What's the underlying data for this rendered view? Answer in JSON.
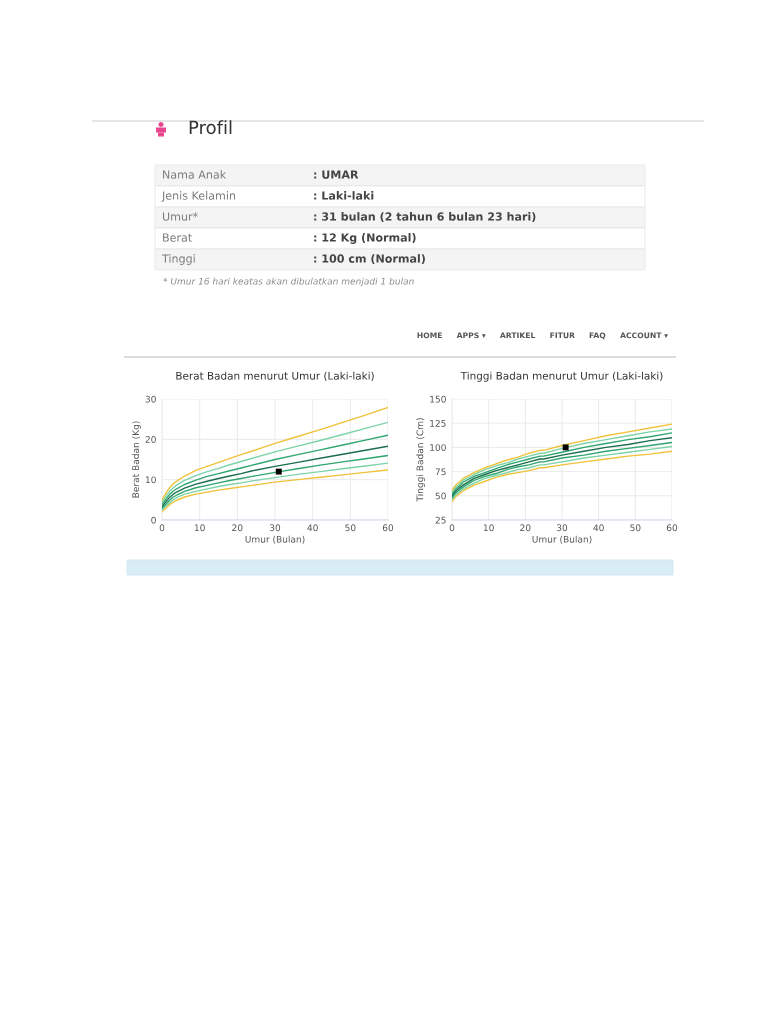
{
  "chart_data": [
    {
      "type": "other",
      "title": "Profil",
      "categories": [
        "Nama Anak",
        "Jenis Kelamin",
        "Umur*",
        "Berat",
        "Tinggi"
      ],
      "annotations": [
        ": UMAR",
        ": Laki-laki",
        ": 31 bulan (2 tahun 6 bulan 23 hari)",
        ": 12 Kg (Normal)",
        ": 100 cm (Normal)",
        "* Umur 16 hari keatas akan dibulatkan menjadi 1 bulan"
      ]
    },
    {
      "type": "other",
      "annotations": [
        "HOME",
        "APPS ▾",
        "ARTIKEL",
        "FITUR",
        "FAQ",
        "ACCOUNT ▾"
      ]
    },
    {
      "type": "line",
      "title": "Berat Badan menurut Umur (Laki-laki)",
      "xlabel": "Umur (Bulan)",
      "ylabel": "Berat Badan (Kg)",
      "x": [
        0,
        1,
        2,
        3,
        4,
        6,
        9,
        12,
        15,
        18,
        21,
        24,
        30,
        36,
        42,
        48,
        54,
        60
      ],
      "xlim": [
        0,
        60
      ],
      "xticks": [
        0,
        10,
        20,
        30,
        40,
        50,
        60
      ],
      "ylim": [
        0,
        30
      ],
      "yticks": [
        0,
        10,
        20,
        30
      ],
      "grid": true,
      "series": [
        {
          "color": "#f0c23b",
          "values": [
            2.1,
            2.9,
            3.8,
            4.4,
            4.9,
            5.7,
            6.4,
            6.9,
            7.4,
            7.8,
            8.2,
            8.6,
            9.4,
            10.0,
            10.6,
            11.2,
            11.8,
            12.4
          ]
        },
        {
          "color": "#7dd3a8",
          "values": [
            2.5,
            3.4,
            4.3,
            5.0,
            5.6,
            6.4,
            7.1,
            7.7,
            8.3,
            8.8,
            9.2,
            9.7,
            10.5,
            11.3,
            12.0,
            12.7,
            13.4,
            14.1
          ]
        },
        {
          "color": "#2fa56f",
          "values": [
            2.9,
            3.9,
            4.9,
            5.7,
            6.2,
            7.1,
            8.0,
            8.6,
            9.2,
            9.8,
            10.3,
            10.8,
            11.8,
            12.7,
            13.6,
            14.4,
            15.2,
            16.0
          ]
        },
        {
          "color": "#1b6e4d",
          "values": [
            3.3,
            4.5,
            5.6,
            6.4,
            7.0,
            7.9,
            8.9,
            9.6,
            10.3,
            10.9,
            11.5,
            12.2,
            13.3,
            14.3,
            15.3,
            16.3,
            17.3,
            18.3
          ]
        },
        {
          "color": "#2fa56f",
          "values": [
            3.9,
            5.1,
            6.3,
            7.2,
            7.8,
            8.8,
            9.9,
            10.8,
            11.5,
            12.2,
            12.9,
            13.6,
            15.0,
            16.2,
            17.4,
            18.6,
            19.8,
            21.0
          ]
        },
        {
          "color": "#7dd3a8",
          "values": [
            4.4,
            5.8,
            7.1,
            8.0,
            8.7,
            9.8,
            11.0,
            12.0,
            12.8,
            13.7,
            14.5,
            15.3,
            16.9,
            18.3,
            19.7,
            21.2,
            22.7,
            24.2
          ]
        },
        {
          "color": "#f0c23b",
          "values": [
            5.0,
            6.6,
            8.0,
            9.0,
            9.7,
            10.9,
            12.3,
            13.3,
            14.3,
            15.3,
            16.2,
            17.1,
            19.0,
            20.7,
            22.4,
            24.2,
            26.0,
            27.9
          ]
        },
        {
          "type": "scatter",
          "marker": "square",
          "color": "#000000",
          "x": [
            31
          ],
          "values": [
            12
          ]
        }
      ]
    },
    {
      "type": "line",
      "title": "Tinggi Badan menurut Umur (Laki-laki)",
      "xlabel": "Umur (Bulan)",
      "ylabel": "Tinggi Badan (Cm)",
      "x": [
        0,
        1,
        2,
        3,
        6,
        9,
        12,
        15,
        18,
        21,
        24,
        25,
        30,
        36,
        42,
        48,
        54,
        60
      ],
      "xlim": [
        0,
        60
      ],
      "xticks": [
        0,
        10,
        20,
        30,
        40,
        50,
        60
      ],
      "ylim": [
        25,
        150
      ],
      "yticks": [
        25,
        50,
        75,
        100,
        125,
        150
      ],
      "grid": true,
      "series": [
        {
          "color": "#f0c23b",
          "values": [
            44,
            49,
            52,
            55,
            61,
            65,
            69,
            72,
            74,
            76,
            79,
            79,
            82,
            85,
            88,
            91,
            93,
            96
          ]
        },
        {
          "color": "#7dd3a8",
          "values": [
            46,
            51,
            54,
            57,
            63,
            68,
            71,
            74,
            77,
            79,
            82,
            82,
            85,
            89,
            92,
            95,
            98,
            101
          ]
        },
        {
          "color": "#2fa56f",
          "values": [
            48,
            53,
            56,
            59,
            66,
            70,
            73,
            77,
            80,
            82,
            85,
            85,
            89,
            92,
            96,
            99,
            102,
            105
          ]
        },
        {
          "color": "#1b6e4d",
          "values": [
            50,
            55,
            58,
            61,
            68,
            72,
            76,
            79,
            82,
            85,
            88,
            88,
            92,
            96,
            100,
            103,
            107,
            110
          ]
        },
        {
          "color": "#2fa56f",
          "values": [
            52,
            57,
            60,
            64,
            70,
            74,
            78,
            82,
            85,
            88,
            91,
            91,
            95,
            100,
            104,
            108,
            111,
            115
          ]
        },
        {
          "color": "#7dd3a8",
          "values": [
            54,
            59,
            62,
            66,
            72,
            77,
            81,
            84,
            88,
            91,
            94,
            94,
            99,
            104,
            108,
            112,
            116,
            119
          ]
        },
        {
          "color": "#f0c23b",
          "values": [
            56,
            61,
            64,
            68,
            74,
            79,
            83,
            87,
            90,
            94,
            97,
            97,
            102,
            107,
            112,
            116,
            120,
            124
          ]
        },
        {
          "type": "scatter",
          "marker": "square",
          "color": "#000000",
          "x": [
            31
          ],
          "values": [
            100
          ]
        }
      ]
    }
  ]
}
